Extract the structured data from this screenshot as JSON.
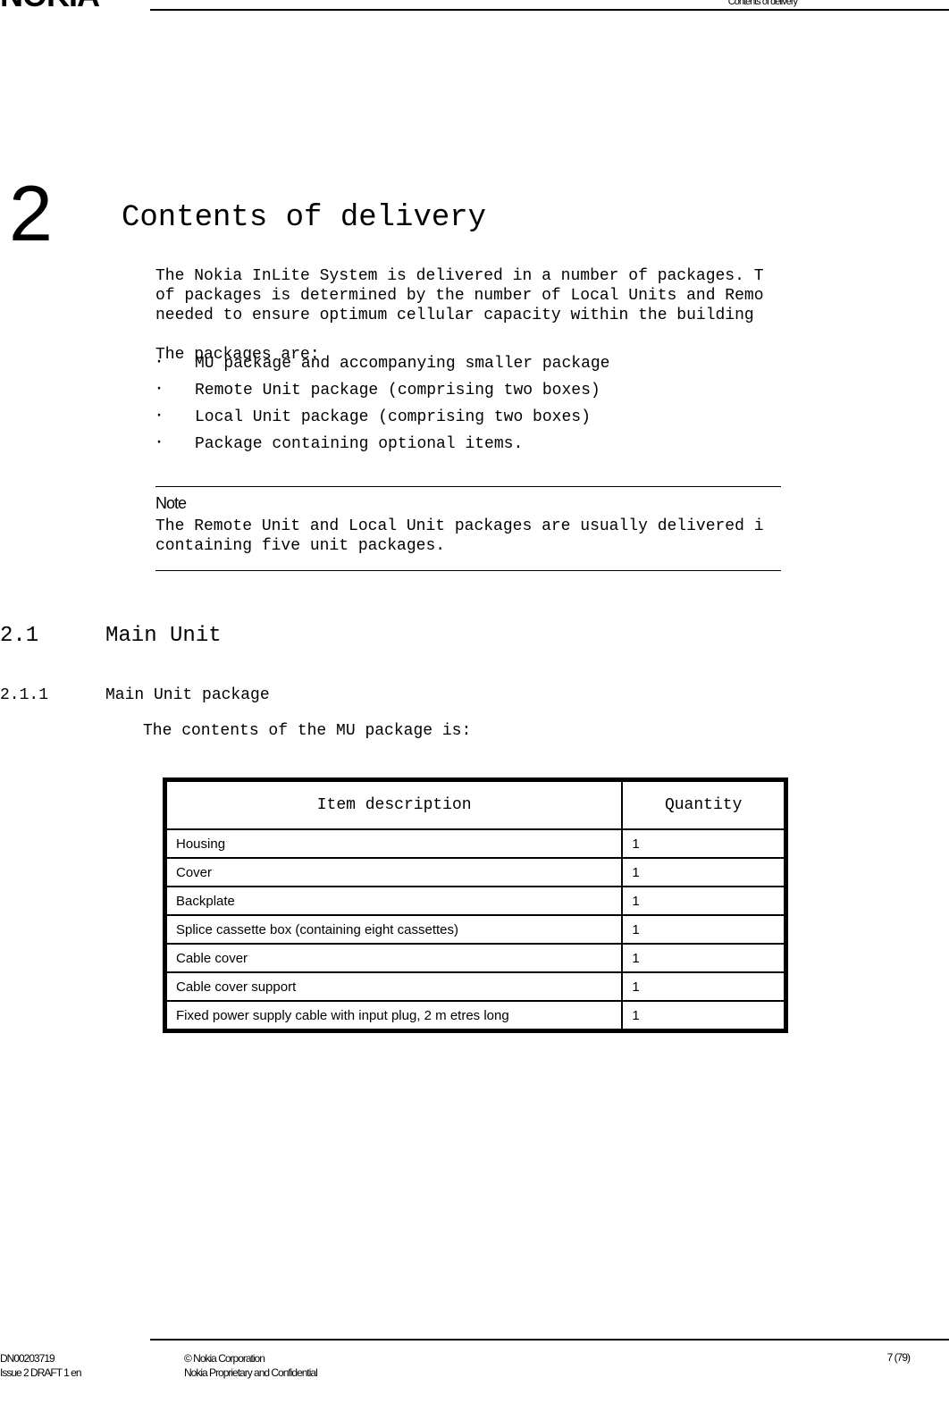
{
  "header": {
    "logo_fragment": "NOKIA",
    "running_head": "Contents of delivery"
  },
  "chapter": {
    "number": "2",
    "title": "Contents of delivery"
  },
  "intro_lines": [
    "The Nokia InLite System is delivered in a number of packages. T",
    "of packages is determined by the number of Local Units and Remo",
    "needed to ensure optimum cellular capacity within the building",
    "",
    "The packages are:"
  ],
  "bullets": [
    "MU package and accompanying smaller package",
    "Remote Unit package (comprising two boxes)",
    "Local Unit package (comprising two boxes)",
    "Package containing optional items."
  ],
  "note": {
    "label": "Note",
    "body_lines": [
      "The Remote Unit and Local Unit packages are usually delivered i",
      "containing five unit packages."
    ]
  },
  "h2": {
    "num": "2.1",
    "title": "Main Unit"
  },
  "h3": {
    "num": "2.1.1",
    "title": "Main Unit package"
  },
  "table_intro": "The contents of the MU package is:",
  "table": {
    "columns": [
      "Item description",
      "Quantity"
    ],
    "rows": [
      [
        "Housing",
        "1"
      ],
      [
        "Cover",
        "1"
      ],
      [
        "Backplate",
        "1"
      ],
      [
        "Splice cassette box (containing eight cassettes)",
        "1"
      ],
      [
        "Cable cover",
        "1"
      ],
      [
        "Cable cover support",
        "1"
      ],
      [
        "Fixed power supply cable with input plug, 2 m etres long",
        "1"
      ]
    ]
  },
  "footer": {
    "left_line1": "DN00203719",
    "left_line2": "Issue 2 DRAFT 1 en",
    "mid_line1": "© Nokia Corporation",
    "mid_line2": "Nokia Proprietary and Confidential",
    "right": "7 (79)"
  }
}
